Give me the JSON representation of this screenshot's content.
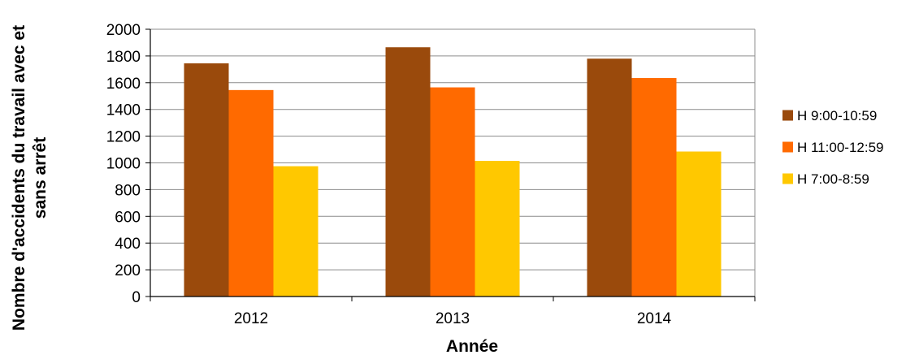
{
  "chart_data": {
    "type": "bar",
    "categories": [
      "2012",
      "2013",
      "2014"
    ],
    "series": [
      {
        "name": "H 9:00-10:59",
        "color": "#9a4a0c",
        "values": [
          1745,
          1865,
          1780
        ]
      },
      {
        "name": "H 11:00-12:59",
        "color": "#ff6a00",
        "values": [
          1545,
          1565,
          1635
        ]
      },
      {
        "name": "H 7:00-8:59",
        "color": "#ffc800",
        "values": [
          975,
          1015,
          1085
        ]
      }
    ],
    "xlabel": "Année",
    "ylabel": "Nombre d'accidents du travail avec et sans arrêt",
    "ylabel_lines": [
      "Nombre d'accidents du travail avec et",
      "sans arrêt"
    ],
    "ylim": [
      0,
      2000
    ],
    "yticks": [
      "0",
      "200",
      "400",
      "600",
      "800",
      "1000",
      "1200",
      "1400",
      "1600",
      "1800",
      "2000"
    ],
    "grid": true,
    "legend_position": "right"
  }
}
